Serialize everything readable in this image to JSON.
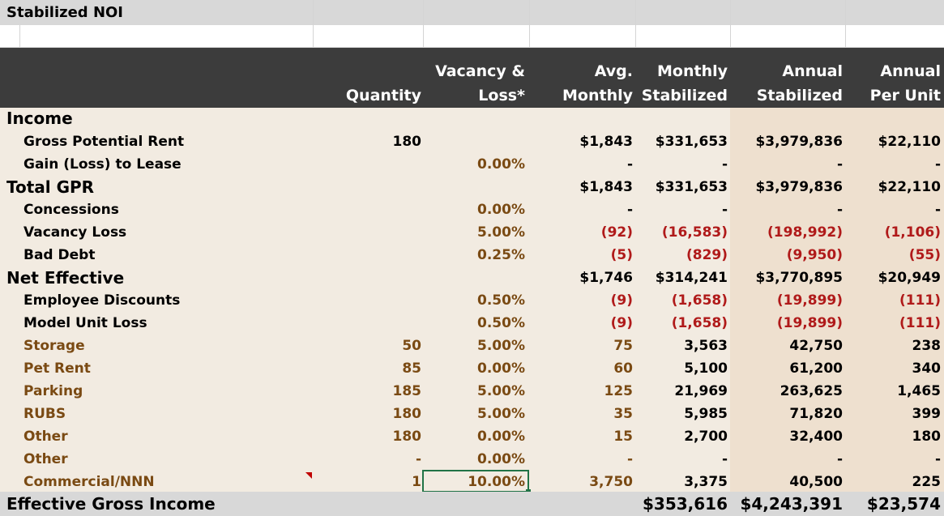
{
  "title": "Stabilized NOI",
  "headers": {
    "quantity": "Quantity",
    "vacancy_line1": "Vacancy &",
    "vacancy_line2": "Loss*",
    "avg_line1": "Avg.",
    "avg_line2": "Monthly",
    "monthly_line1": "Monthly",
    "monthly_line2": "Stabilized",
    "annual_line1": "Annual",
    "annual_line2": "Stabilized",
    "perunit_line1": "Annual",
    "perunit_line2": "Per Unit"
  },
  "rows": [
    {
      "label": "Income",
      "qty": "",
      "vac": "",
      "avg": "",
      "mon": "",
      "ann": "",
      "pu": ""
    },
    {
      "label": "Gross Potential Rent",
      "qty": "180",
      "vac": "",
      "avg": "$1,843",
      "mon": "$331,653",
      "ann": "$3,979,836",
      "pu": "$22,110"
    },
    {
      "label": "Gain (Loss) to Lease",
      "qty": "",
      "vac": "0.00%",
      "avg": "-",
      "mon": "-",
      "ann": "-",
      "pu": "-"
    },
    {
      "label": "Total GPR",
      "qty": "",
      "vac": "",
      "avg": "$1,843",
      "mon": "$331,653",
      "ann": "$3,979,836",
      "pu": "$22,110"
    },
    {
      "label": "Concessions",
      "qty": "",
      "vac": "0.00%",
      "avg": "-",
      "mon": "-",
      "ann": "-",
      "pu": "-"
    },
    {
      "label": "Vacancy Loss",
      "qty": "",
      "vac": "5.00%",
      "avg": "(92)",
      "mon": "(16,583)",
      "ann": "(198,992)",
      "pu": "(1,106)"
    },
    {
      "label": "Bad Debt",
      "qty": "",
      "vac": "0.25%",
      "avg": "(5)",
      "mon": "(829)",
      "ann": "(9,950)",
      "pu": "(55)"
    },
    {
      "label": "Net Effective",
      "qty": "",
      "vac": "",
      "avg": "$1,746",
      "mon": "$314,241",
      "ann": "$3,770,895",
      "pu": "$20,949"
    },
    {
      "label": "Employee Discounts",
      "qty": "",
      "vac": "0.50%",
      "avg": "(9)",
      "mon": "(1,658)",
      "ann": "(19,899)",
      "pu": "(111)"
    },
    {
      "label": "Model Unit Loss",
      "qty": "",
      "vac": "0.50%",
      "avg": "(9)",
      "mon": "(1,658)",
      "ann": "(19,899)",
      "pu": "(111)"
    },
    {
      "label": "Storage",
      "qty": "50",
      "vac": "5.00%",
      "avg": "75",
      "mon": "3,563",
      "ann": "42,750",
      "pu": "238"
    },
    {
      "label": "Pet Rent",
      "qty": "85",
      "vac": "0.00%",
      "avg": "60",
      "mon": "5,100",
      "ann": "61,200",
      "pu": "340"
    },
    {
      "label": "Parking",
      "qty": "185",
      "vac": "5.00%",
      "avg": "125",
      "mon": "21,969",
      "ann": "263,625",
      "pu": "1,465"
    },
    {
      "label": "RUBS",
      "qty": "180",
      "vac": "5.00%",
      "avg": "35",
      "mon": "5,985",
      "ann": "71,820",
      "pu": "399"
    },
    {
      "label": "Other",
      "qty": "180",
      "vac": "0.00%",
      "avg": "15",
      "mon": "2,700",
      "ann": "32,400",
      "pu": "180"
    },
    {
      "label": "Other",
      "qty": "-",
      "vac": "0.00%",
      "avg": "-",
      "mon": "-",
      "ann": "-",
      "pu": "-"
    },
    {
      "label": "Commercial/NNN",
      "qty": "1",
      "vac": "10.00%",
      "avg": "3,750",
      "mon": "3,375",
      "ann": "40,500",
      "pu": "225"
    }
  ],
  "footer": {
    "label": "Effective Gross Income",
    "mon": "$353,616",
    "ann": "$4,243,391",
    "pu": "$23,574"
  },
  "colors": {
    "header_bg": "#3c3c3c",
    "body_bg": "#f2ebe1",
    "annual_bg": "#eee0cf",
    "input_text": "#7a4a13",
    "negative_text": "#b01a1a",
    "selection_border": "#217346"
  }
}
